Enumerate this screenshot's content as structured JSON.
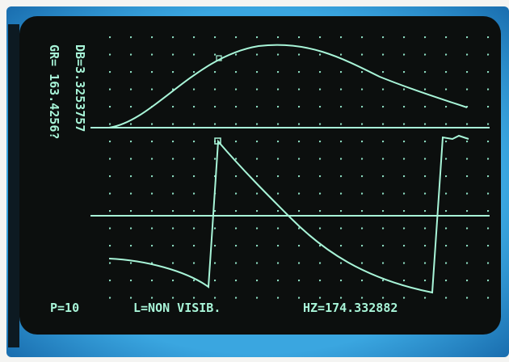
{
  "status": {
    "points": "P=10",
    "line": "L=NON VISIB.",
    "frequency": "HZ=174.332882"
  },
  "side": {
    "gain": "GR= 163.4256?",
    "decibels": "DB=3.3253757"
  }
}
